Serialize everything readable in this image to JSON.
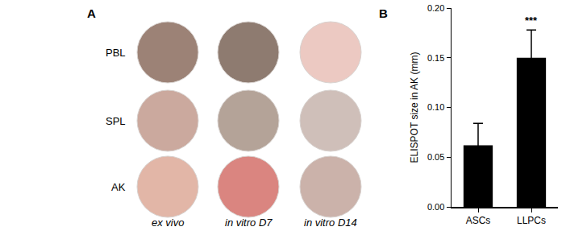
{
  "panel_a": {
    "label": "A",
    "rows": [
      "PBL",
      "SPL",
      "AK"
    ],
    "columns": [
      "ex vivo",
      "in vitro D7",
      "in vitro D14"
    ]
  },
  "chart_data": {
    "type": "bar",
    "title": "B",
    "categories": [
      "ASCs",
      "LLPCs"
    ],
    "values": [
      0.062,
      0.15
    ],
    "errors": [
      0.022,
      0.028
    ],
    "color": "#000000",
    "y_label": "ELISPOT size in AK (mm)",
    "ylim": [
      0,
      0.2
    ],
    "yticks": [
      {
        "value": 0,
        "label": "0.00"
      },
      {
        "value": 0.05,
        "label": "0.05"
      },
      {
        "value": 0.1,
        "label": "0.10"
      },
      {
        "value": 0.15,
        "label": "0.15"
      },
      {
        "value": 0.2,
        "label": "0.20"
      }
    ],
    "annotations": [
      {
        "category": "LLPCs",
        "text": "***"
      }
    ],
    "grid": false
  }
}
